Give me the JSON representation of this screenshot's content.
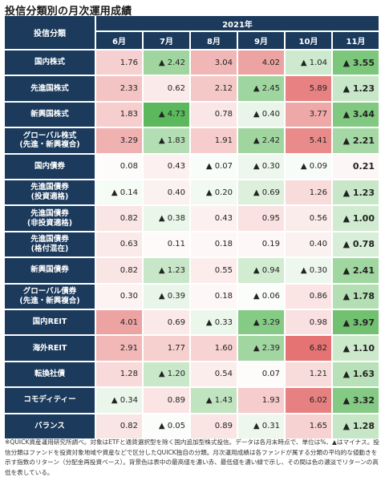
{
  "title": "投信分類別の月次運用成績",
  "note": "※QUICK資産運用研究所調べ。対象はETFと通貨選択型を除く国内追加型株式投信。データは各月末時点で、単位は%、▲はマイナス。投信分類はファンドを投資対象地域や資産などで区分したQUICK独自の分類。月次運用成績は各ファンドが属する分類の平均的な値動きを示す指数のリターン（分配金再投資ベース）。背景色は表中の最高値を濃い赤、最低値を濃い緑で示し、その間は色の濃淡でリターンの高低を表している。",
  "chart_data": {
    "type": "table",
    "row_header_label": "投信分類",
    "year_label": "2021年",
    "columns": [
      "6月",
      "7月",
      "8月",
      "9月",
      "10月",
      "11月"
    ],
    "minus_sign": "▲",
    "colors": {
      "header_bg": "#1b3a5c",
      "max_red": "#e57373",
      "min_green": "#5cb85c"
    },
    "rows": [
      {
        "label": [
          "国内株式"
        ],
        "values": [
          1.76,
          -2.42,
          3.04,
          4.02,
          -1.04,
          -3.55
        ]
      },
      {
        "label": [
          "先進国株式"
        ],
        "values": [
          2.33,
          0.62,
          2.12,
          -2.45,
          5.89,
          -1.23
        ]
      },
      {
        "label": [
          "新興国株式"
        ],
        "values": [
          1.83,
          -4.73,
          0.78,
          -0.4,
          3.77,
          -3.44
        ]
      },
      {
        "label": [
          "グローバル株式",
          "(先進・新興複合)"
        ],
        "values": [
          3.29,
          -1.83,
          1.91,
          -2.42,
          5.41,
          -2.21
        ]
      },
      {
        "label": [
          "国内債券"
        ],
        "values": [
          0.08,
          0.43,
          -0.07,
          -0.3,
          -0.09,
          0.21
        ]
      },
      {
        "label": [
          "先進国債券",
          "(投資適格)"
        ],
        "values": [
          -0.14,
          0.4,
          -0.2,
          -0.69,
          1.26,
          -1.23
        ]
      },
      {
        "label": [
          "先進国債券",
          "(非投資適格)"
        ],
        "values": [
          0.82,
          -0.38,
          0.43,
          0.95,
          0.56,
          -1.0
        ]
      },
      {
        "label": [
          "先進国債券",
          "(格付混在)"
        ],
        "values": [
          0.63,
          0.11,
          0.18,
          0.19,
          0.4,
          -0.78
        ]
      },
      {
        "label": [
          "新興国債券"
        ],
        "values": [
          0.82,
          -1.23,
          0.55,
          -0.94,
          -0.3,
          -2.41
        ]
      },
      {
        "label": [
          "グローバル債券",
          "(先進・新興複合)"
        ],
        "values": [
          0.3,
          -0.39,
          0.18,
          -0.06,
          0.86,
          -1.78
        ]
      },
      {
        "label": [
          "国内REIT"
        ],
        "values": [
          4.01,
          0.69,
          -0.33,
          -3.29,
          0.98,
          -3.97
        ]
      },
      {
        "label": [
          "海外REIT"
        ],
        "values": [
          2.91,
          1.77,
          1.6,
          -2.39,
          6.82,
          -1.1
        ]
      },
      {
        "label": [
          "転換社債"
        ],
        "values": [
          1.28,
          -1.2,
          0.54,
          0.07,
          1.21,
          -1.63
        ]
      },
      {
        "label": [
          "コモディティー"
        ],
        "values": [
          -0.34,
          0.89,
          -1.43,
          1.93,
          6.02,
          -3.32
        ]
      },
      {
        "label": [
          "バランス"
        ],
        "values": [
          0.82,
          -0.05,
          0.89,
          -0.31,
          1.65,
          -1.28
        ]
      }
    ]
  }
}
